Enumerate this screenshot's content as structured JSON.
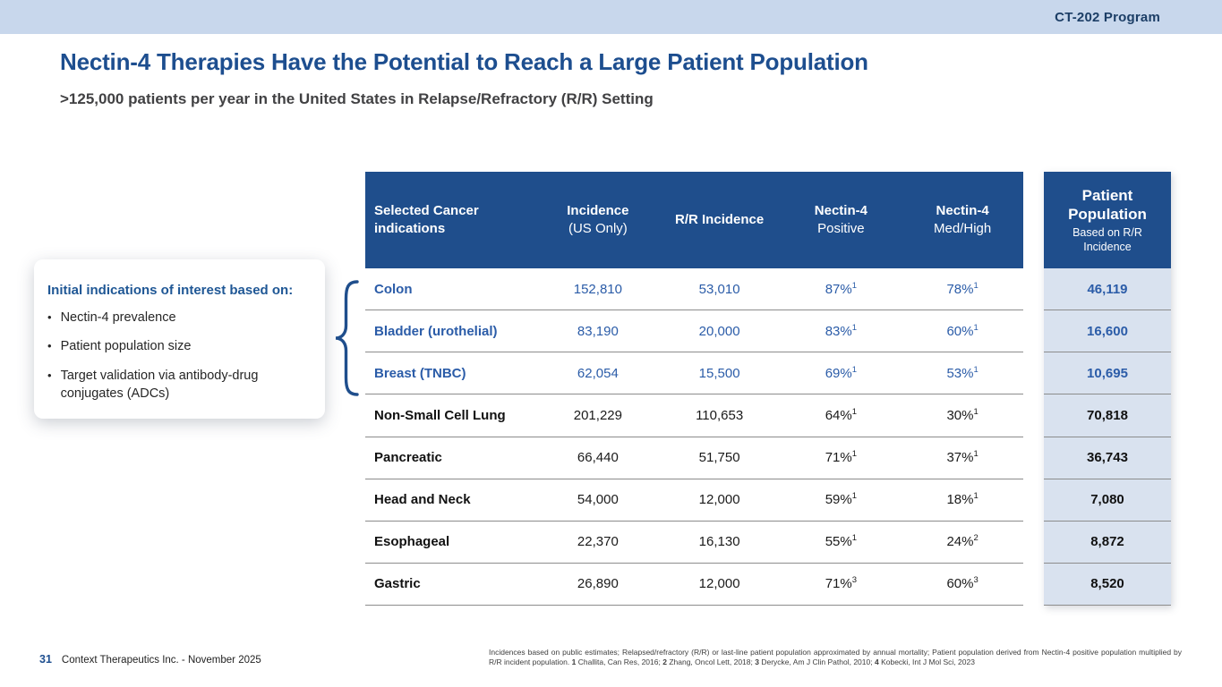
{
  "topbar": {
    "program": "CT-202 Program"
  },
  "header": {
    "title": "Nectin-4 Therapies Have the Potential to Reach a Large Patient Population",
    "subtitle": ">125,000 patients per year in the United States in Relapse/Refractory (R/R) Setting"
  },
  "callout": {
    "heading": "Initial indications of interest based on:",
    "bullets": [
      "Nectin-4 prevalence",
      "Patient population size",
      "Target validation via antibody-drug conjugates (ADCs)"
    ]
  },
  "table": {
    "columns": [
      {
        "line1": "Selected Cancer",
        "line2": "indications"
      },
      {
        "line1": "Incidence",
        "line2": "(US Only)"
      },
      {
        "line1": "R/R Incidence",
        "line2": ""
      },
      {
        "line1": "Nectin-4",
        "line2": "Positive"
      },
      {
        "line1": "Nectin-4",
        "line2": "Med/High"
      }
    ],
    "population_header": {
      "title": "Patient Population",
      "subtitle": "Based on R/R Incidence"
    },
    "rows": [
      {
        "indication": "Colon",
        "incidence": "152,810",
        "rr_incidence": "53,010",
        "nectin4_positive": "87%",
        "positive_ref": "1",
        "nectin4_medhigh": "78%",
        "medhigh_ref": "1",
        "population": "46,119",
        "highlighted": true
      },
      {
        "indication": "Bladder (urothelial)",
        "incidence": "83,190",
        "rr_incidence": "20,000",
        "nectin4_positive": "83%",
        "positive_ref": "1",
        "nectin4_medhigh": "60%",
        "medhigh_ref": "1",
        "population": "16,600",
        "highlighted": true
      },
      {
        "indication": "Breast (TNBC)",
        "incidence": "62,054",
        "rr_incidence": "15,500",
        "nectin4_positive": "69%",
        "positive_ref": "1",
        "nectin4_medhigh": "53%",
        "medhigh_ref": "1",
        "population": "10,695",
        "highlighted": true
      },
      {
        "indication": "Non-Small Cell Lung",
        "incidence": "201,229",
        "rr_incidence": "110,653",
        "nectin4_positive": "64%",
        "positive_ref": "1",
        "nectin4_medhigh": "30%",
        "medhigh_ref": "1",
        "population": "70,818",
        "highlighted": false
      },
      {
        "indication": "Pancreatic",
        "incidence": "66,440",
        "rr_incidence": "51,750",
        "nectin4_positive": "71%",
        "positive_ref": "1",
        "nectin4_medhigh": "37%",
        "medhigh_ref": "1",
        "population": "36,743",
        "highlighted": false
      },
      {
        "indication": "Head and Neck",
        "incidence": "54,000",
        "rr_incidence": "12,000",
        "nectin4_positive": "59%",
        "positive_ref": "1",
        "nectin4_medhigh": "18%",
        "medhigh_ref": "1",
        "population": "7,080",
        "highlighted": false
      },
      {
        "indication": "Esophageal",
        "incidence": "22,370",
        "rr_incidence": "16,130",
        "nectin4_positive": "55%",
        "positive_ref": "1",
        "nectin4_medhigh": "24%",
        "medhigh_ref": "2",
        "population": "8,872",
        "highlighted": false
      },
      {
        "indication": "Gastric",
        "incidence": "26,890",
        "rr_incidence": "12,000",
        "nectin4_positive": "71%",
        "positive_ref": "3",
        "nectin4_medhigh": "60%",
        "medhigh_ref": "3",
        "population": "8,520",
        "highlighted": false
      }
    ]
  },
  "footer": {
    "page_number": "31",
    "company": "Context Therapeutics Inc. - November 2025"
  },
  "footnote": {
    "segments": [
      {
        "text": "Incidences based on public estimates; Relapsed/refractory (R/R) or last-line patient population approximated by annual mortality; Patient population derived from Nectin-4 positive population multiplied by R/R incident population. ",
        "bold": false
      },
      {
        "text": "1",
        "bold": true
      },
      {
        "text": " Challita, Can Res, 2016; ",
        "bold": false
      },
      {
        "text": "2",
        "bold": true
      },
      {
        "text": " Zhang, Oncol Lett, 2018; ",
        "bold": false
      },
      {
        "text": "3",
        "bold": true
      },
      {
        "text": " Derycke, Am J Clin Pathol, 2010; ",
        "bold": false
      },
      {
        "text": "4",
        "bold": true
      },
      {
        "text": " Kobecki, Int J Mol Sci, 2023",
        "bold": false
      }
    ]
  },
  "colors": {
    "topbar_bg": "#c8d7ec",
    "header_bg": "#1f4e8c",
    "accent_blue": "#1d4e8f",
    "row_blue": "#2b5ca8",
    "population_cell_bg": "#d9e2ef",
    "separator": "#8c8c8c"
  }
}
